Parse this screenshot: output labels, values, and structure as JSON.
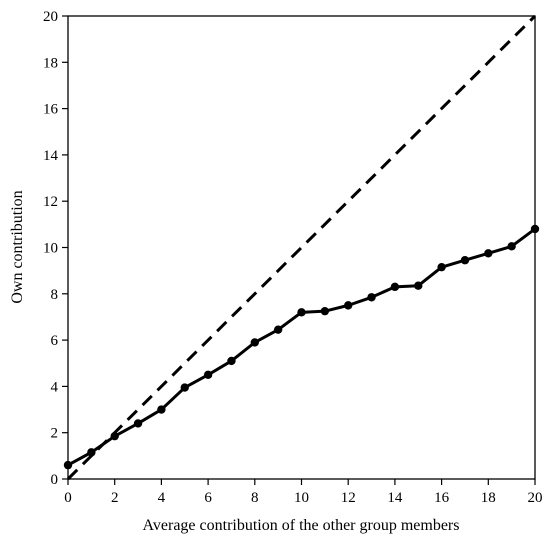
{
  "chart_data": {
    "type": "line",
    "title": "",
    "xlabel": "Average contribution of the other group members",
    "ylabel": "Own contribution",
    "xlim": [
      0,
      20
    ],
    "ylim": [
      0,
      20
    ],
    "xticks": [
      0,
      2,
      4,
      6,
      8,
      10,
      12,
      14,
      16,
      18,
      20
    ],
    "yticks": [
      0,
      2,
      4,
      6,
      8,
      10,
      12,
      14,
      16,
      18,
      20
    ],
    "grid": false,
    "legend": "none",
    "series": [
      {
        "style": "solid-with-markers",
        "color": "#000000",
        "x": [
          0,
          1,
          2,
          3,
          4,
          5,
          6,
          7,
          8,
          9,
          10,
          11,
          12,
          13,
          14,
          15,
          16,
          17,
          18,
          19,
          20
        ],
        "y": [
          0.6,
          1.15,
          1.85,
          2.4,
          3.0,
          3.95,
          4.5,
          5.1,
          5.9,
          6.45,
          7.2,
          7.25,
          7.5,
          7.85,
          8.3,
          8.35,
          9.15,
          9.45,
          9.75,
          10.05,
          10.8
        ]
      },
      {
        "style": "dashed",
        "color": "#000000",
        "x": [
          0,
          20
        ],
        "y": [
          0,
          20
        ]
      }
    ]
  }
}
